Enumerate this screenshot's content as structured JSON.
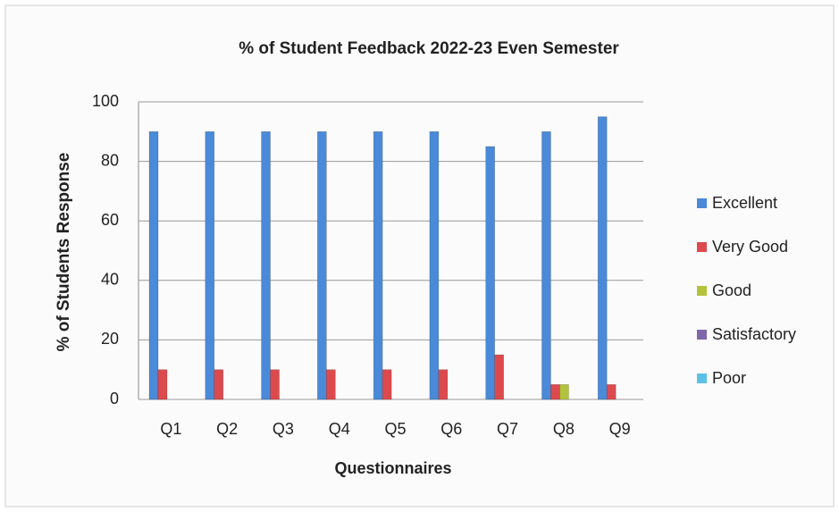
{
  "chart_data": {
    "type": "bar",
    "title": "% of Student Feedback 2022-23 Even Semester",
    "x_label": "Questionnaires",
    "y_label": "% of Students Response",
    "categories": [
      "Q1",
      "Q2",
      "Q3",
      "Q4",
      "Q5",
      "Q6",
      "Q7",
      "Q8",
      "Q9"
    ],
    "series": [
      {
        "name": "Excellent",
        "color": "#4a8ad8",
        "values": [
          90,
          90,
          90,
          90,
          90,
          90,
          85,
          90,
          95
        ]
      },
      {
        "name": "Very Good",
        "color": "#dc4a4e",
        "values": [
          10,
          10,
          10,
          10,
          10,
          10,
          15,
          5,
          5
        ]
      },
      {
        "name": "Good",
        "color": "#b4c23c",
        "values": [
          0,
          0,
          0,
          0,
          0,
          0,
          0,
          5,
          0
        ]
      },
      {
        "name": "Satisfactory",
        "color": "#7f66a8",
        "values": [
          0,
          0,
          0,
          0,
          0,
          0,
          0,
          0,
          0
        ]
      },
      {
        "name": "Poor",
        "color": "#5cc0e4",
        "values": [
          0,
          0,
          0,
          0,
          0,
          0,
          0,
          0,
          0
        ]
      }
    ],
    "ylim": [
      0,
      100
    ],
    "yticks": [
      0,
      20,
      40,
      60,
      80,
      100
    ],
    "grid": true,
    "legend": "right"
  }
}
